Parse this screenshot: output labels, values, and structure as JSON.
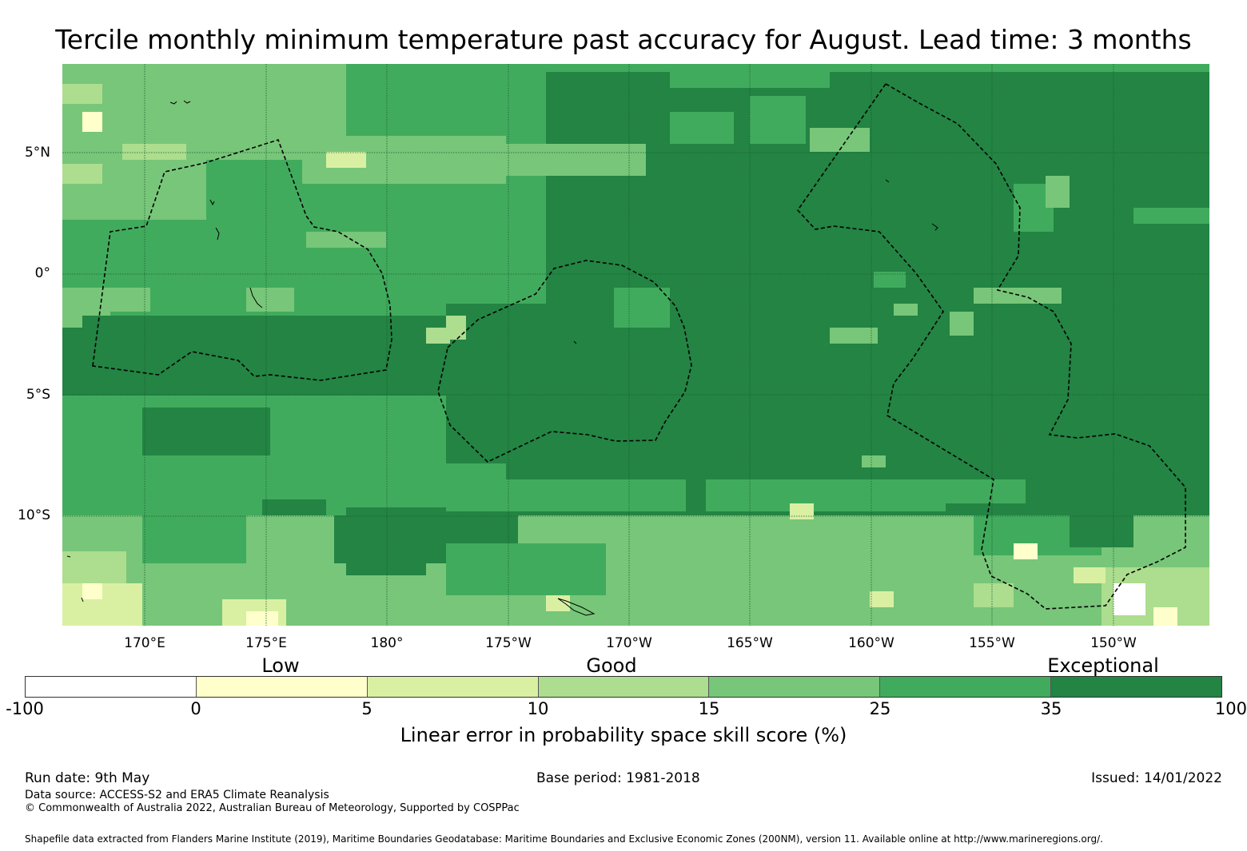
{
  "title": "Tercile monthly minimum temperature past accuracy for August. Lead time: 3 months",
  "map": {
    "lat_labels": [
      "5°N",
      "0°",
      "5°S",
      "10°S"
    ],
    "lon_labels": [
      "170°E",
      "175°E",
      "180°",
      "175°W",
      "170°W",
      "165°W",
      "160°W",
      "155°W",
      "150°W"
    ],
    "base_color": "#238443"
  },
  "legend": {
    "categories": [
      "Low",
      "Good",
      "Exceptional"
    ],
    "ticks": [
      "-100",
      "0",
      "5",
      "10",
      "15",
      "25",
      "35",
      "100"
    ],
    "colors": [
      "#ffffff",
      "#ffffcc",
      "#d9f0a3",
      "#addd8e",
      "#78c679",
      "#41ab5d",
      "#238443"
    ],
    "label": "Linear error in probability space skill score (%)"
  },
  "footer": {
    "run_date": "Run date: 9th May",
    "base_period": "Base period: 1981-2018",
    "issued": "Issued: 14/01/2022",
    "data_source": "Data source: ACCESS-S2 and ERA5 Climate Reanalysis",
    "copyright": "© Commonwealth of Australia 2022, Australian Bureau of Meteorology, Supported by COSPPac",
    "shapefile": "Shapefile data extracted from Flanders Marine Institute (2019), Maritime Boundaries Geodatabase: Maritime Boundaries and Exclusive Economic Zones (200NM), version 11. Available online at http://www.marineregions.org/."
  }
}
